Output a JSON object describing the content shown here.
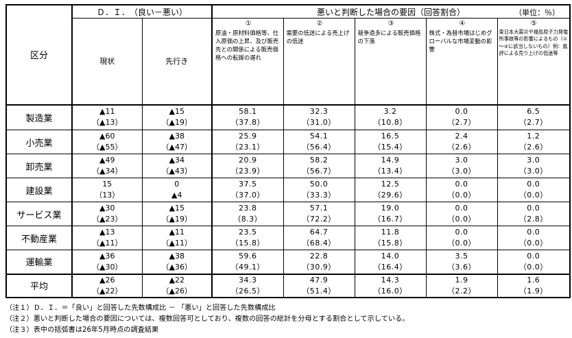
{
  "header": {
    "category": "区分",
    "di_group": "Ｄ．Ｉ．　（良い－悪い）",
    "di_current": "現状",
    "di_future": "先行き",
    "reason_group": "悪いと判断した場合の要因（回答割合）",
    "unit": "（単位：％）",
    "reasons": [
      {
        "num": "①",
        "label": "原油・原材料価格等、仕入原価の上昇、及び販売先との関係による販売価格への転嫁の遅れ"
      },
      {
        "num": "②",
        "label": "需要の低迷による売上げの低迷"
      },
      {
        "num": "③",
        "label": "競争過多による販売価格の下落"
      },
      {
        "num": "④",
        "label": "株式・為替市場はじめグローバルな市場変動の影響"
      },
      {
        "num": "⑤",
        "label": "東日本大震災や福島原子力発電所事故等の影響によるもの（①～④に該当しないもの）例：風評による売り上げの低迷等"
      }
    ]
  },
  "rows": [
    {
      "name": "製造業",
      "current": "▲11",
      "current_prev": "（▲13）",
      "future": "▲15",
      "future_prev": "（▲19）",
      "r1": "58.1",
      "r1_prev": "（37.8）",
      "r2": "32.3",
      "r2_prev": "（31.0）",
      "r3": "3.2",
      "r3_prev": "（10.8）",
      "r4": "0.0",
      "r4_prev": "（2.7）",
      "r5": "6.5",
      "r5_prev": "（2.7）"
    },
    {
      "name": "小売業",
      "current": "▲60",
      "current_prev": "（▲55）",
      "future": "▲38",
      "future_prev": "（▲47）",
      "r1": "25.9",
      "r1_prev": "（23.1）",
      "r2": "54.1",
      "r2_prev": "（56.4）",
      "r3": "16.5",
      "r3_prev": "（15.4）",
      "r4": "2.4",
      "r4_prev": "（2.6）",
      "r5": "1.2",
      "r5_prev": "（2.6）"
    },
    {
      "name": "卸売業",
      "current": "▲49",
      "current_prev": "（▲34）",
      "future": "▲34",
      "future_prev": "（▲43）",
      "r1": "20.9",
      "r1_prev": "（23.9）",
      "r2": "58.2",
      "r2_prev": "（56.7）",
      "r3": "14.9",
      "r3_prev": "（13.4）",
      "r4": "3.0",
      "r4_prev": "（3.0）",
      "r5": "3.0",
      "r5_prev": "（3.0）"
    },
    {
      "name": "建設業",
      "current": "15",
      "current_prev": "（13）",
      "future": "0",
      "future_prev": "▲4",
      "r1": "37.5",
      "r1_prev": "（37.0）",
      "r2": "50.0",
      "r2_prev": "（33.3）",
      "r3": "12.5",
      "r3_prev": "（29.6）",
      "r4": "0.0",
      "r4_prev": "（0.0）",
      "r5": "0.0",
      "r5_prev": "（0.0）"
    },
    {
      "name": "サービス業",
      "current": "▲30",
      "current_prev": "（▲23）",
      "future": "▲15",
      "future_prev": "（▲19）",
      "r1": "23.8",
      "r1_prev": "（8.3）",
      "r2": "57.1",
      "r2_prev": "（72.2）",
      "r3": "19.0",
      "r3_prev": "（16.7）",
      "r4": "0.0",
      "r4_prev": "（0.0）",
      "r5": "0.0",
      "r5_prev": "（2.8）"
    },
    {
      "name": "不動産業",
      "current": "▲13",
      "current_prev": "（▲11）",
      "future": "▲11",
      "future_prev": "（▲11）",
      "r1": "23.5",
      "r1_prev": "（15.8）",
      "r2": "64.7",
      "r2_prev": "（68.4）",
      "r3": "11.8",
      "r3_prev": "（15.8）",
      "r4": "0.0",
      "r4_prev": "（0.0）",
      "r5": "0.0",
      "r5_prev": "（0.0）"
    },
    {
      "name": "運輸業",
      "current": "▲36",
      "current_prev": "（▲30）",
      "future": "▲38",
      "future_prev": "（▲36）",
      "r1": "59.6",
      "r1_prev": "（49.1）",
      "r2": "22.8",
      "r2_prev": "（30.9）",
      "r3": "14.0",
      "r3_prev": "（16.4）",
      "r4": "3.5",
      "r4_prev": "（3.6）",
      "r5": "0.0",
      "r5_prev": "（0.0）"
    }
  ],
  "average": {
    "name": "平均",
    "current": "▲26",
    "current_prev": "（▲22）",
    "future": "▲22",
    "future_prev": "（▲26）",
    "r1": "34.3",
    "r1_prev": "（26.5）",
    "r2": "47.9",
    "r2_prev": "（51.4）",
    "r3": "14.3",
    "r3_prev": "（16.0）",
    "r4": "1.9",
    "r4_prev": "（2.2）",
    "r5": "1.6",
    "r5_prev": "（1.9）"
  },
  "notes": [
    "（注１）Ｄ．Ｉ．＝「良い」と回答した先数構成比 － 「悪い」と回答した先数構成比",
    "（注２）悪いと判断した場合の要因については、複数回答可としており、複数の回答の総計を分母とする割合として示している。",
    "（注３）表中の括弧書は26年5月時点の調査結果"
  ]
}
